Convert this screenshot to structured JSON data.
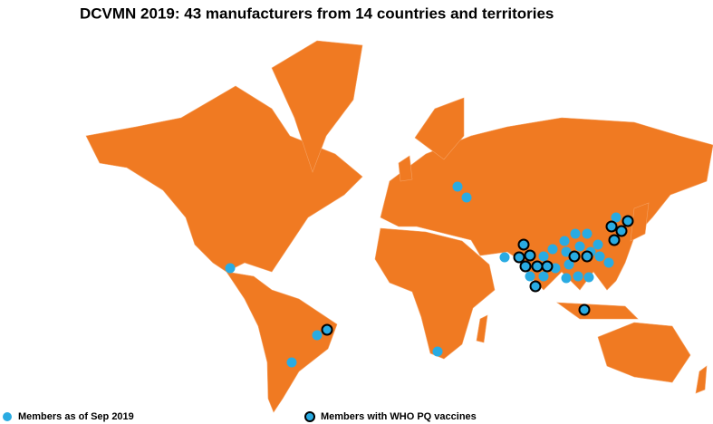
{
  "title": "DCVMN 2019: 43 manufacturers from 14 countries and territories",
  "legend": [
    {
      "label": "Members as of Sep 2019"
    },
    {
      "label": "Members with WHO PQ vaccines"
    }
  ]
}
